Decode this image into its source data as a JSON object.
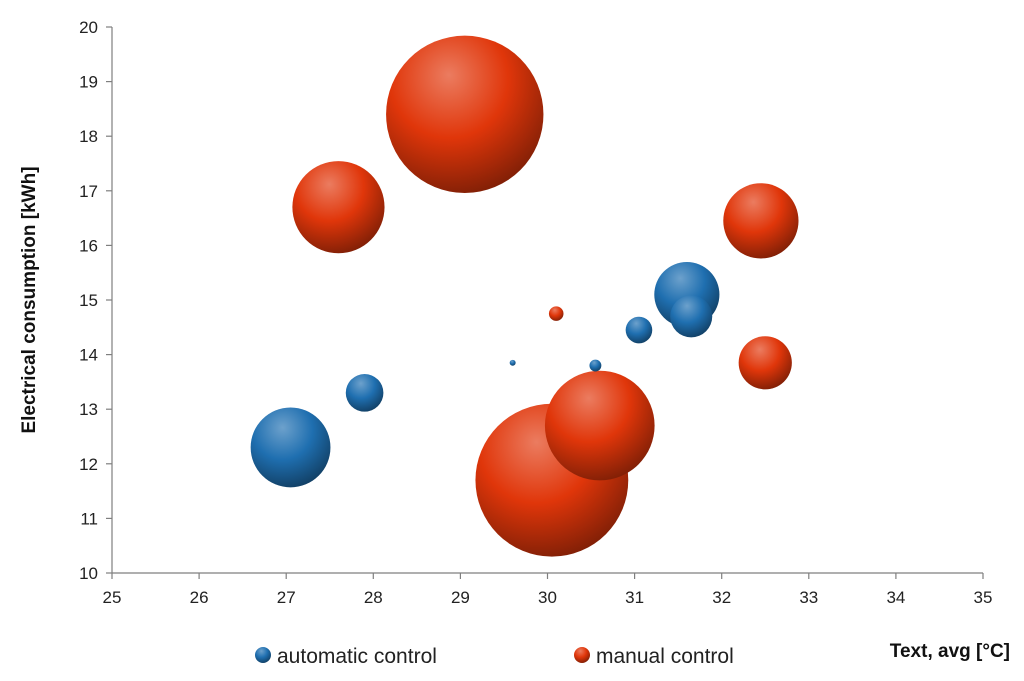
{
  "chart_data": {
    "type": "bubble",
    "xlabel": "Text, avg  [°C]",
    "ylabel": "Electrical consumption [kWh]",
    "xlim": [
      25,
      35
    ],
    "ylim": [
      10,
      20
    ],
    "x_ticks": [
      "25",
      "26",
      "27",
      "28",
      "29",
      "30",
      "31",
      "32",
      "33",
      "34",
      "35"
    ],
    "y_ticks": [
      "10",
      "11",
      "12",
      "13",
      "14",
      "15",
      "16",
      "17",
      "18",
      "19",
      "20"
    ],
    "grid": false,
    "legend_position": "bottom",
    "series": [
      {
        "name": "automatic control",
        "color": "#1f6fb0",
        "points": [
          {
            "x": 27.05,
            "y": 12.3,
            "size": 9.0
          },
          {
            "x": 27.9,
            "y": 13.3,
            "size": 2.0
          },
          {
            "x": 29.6,
            "y": 13.85,
            "size": 0.05
          },
          {
            "x": 30.55,
            "y": 13.8,
            "size": 0.2
          },
          {
            "x": 31.05,
            "y": 14.45,
            "size": 1.0
          },
          {
            "x": 31.6,
            "y": 15.1,
            "size": 6.0
          },
          {
            "x": 31.65,
            "y": 14.7,
            "size": 2.5
          }
        ]
      },
      {
        "name": "manual control",
        "color": "#e0360a",
        "points": [
          {
            "x": 27.6,
            "y": 16.7,
            "size": 12.0
          },
          {
            "x": 29.05,
            "y": 18.4,
            "size": 35.0
          },
          {
            "x": 30.1,
            "y": 14.75,
            "size": 0.3
          },
          {
            "x": 30.05,
            "y": 11.7,
            "size": 33.0
          },
          {
            "x": 30.6,
            "y": 12.7,
            "size": 17.0
          },
          {
            "x": 32.45,
            "y": 16.45,
            "size": 8.0
          },
          {
            "x": 32.5,
            "y": 13.85,
            "size": 4.0
          }
        ]
      }
    ]
  }
}
